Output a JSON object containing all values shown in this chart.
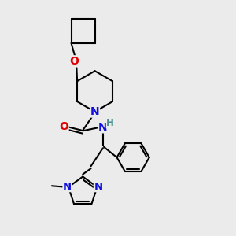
{
  "background_color": "#ebebeb",
  "atom_colors": {
    "N": "#1010dd",
    "O": "#dd0000",
    "C": "#000000",
    "H": "#4a9090"
  },
  "bond_color": "#000000",
  "bond_width": 1.5,
  "figsize": [
    3.0,
    3.0
  ],
  "dpi": 100
}
